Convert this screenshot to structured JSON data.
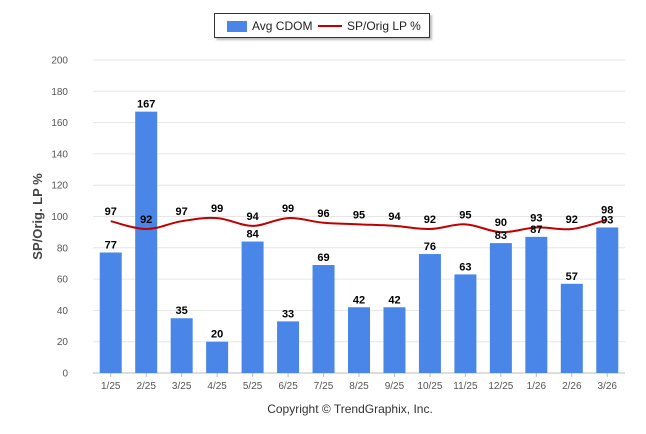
{
  "legend": {
    "bar_label": "Avg CDOM",
    "line_label": "SP/Orig LP %"
  },
  "footer": {
    "copyright": "Copyright © TrendGraphix, Inc."
  },
  "colors": {
    "bar": "#4a86e8",
    "line": "#c00000",
    "grid": "#e6e6e6",
    "axis_text": "#555555"
  },
  "chart_data": {
    "type": "bar",
    "title": "",
    "xlabel": "",
    "ylabel": "SP/Orig. LP %",
    "ylim": [
      0,
      200
    ],
    "yticks": [
      0,
      20,
      40,
      60,
      80,
      100,
      120,
      140,
      160,
      180,
      200
    ],
    "grid": true,
    "legend_position": "top-center",
    "categories": [
      "1/25",
      "2/25",
      "3/25",
      "4/25",
      "5/25",
      "6/25",
      "7/25",
      "8/25",
      "9/25",
      "10/25",
      "11/25",
      "12/25",
      "1/26",
      "2/26",
      "3/26"
    ],
    "series": [
      {
        "name": "Avg CDOM",
        "type": "bar",
        "values": [
          77,
          167,
          35,
          20,
          84,
          33,
          69,
          42,
          42,
          76,
          63,
          83,
          87,
          57,
          93
        ]
      },
      {
        "name": "SP/Orig LP %",
        "type": "line",
        "values": [
          97,
          92,
          97,
          99,
          94,
          99,
          96,
          95,
          94,
          92,
          95,
          90,
          93,
          92,
          98
        ]
      }
    ]
  }
}
